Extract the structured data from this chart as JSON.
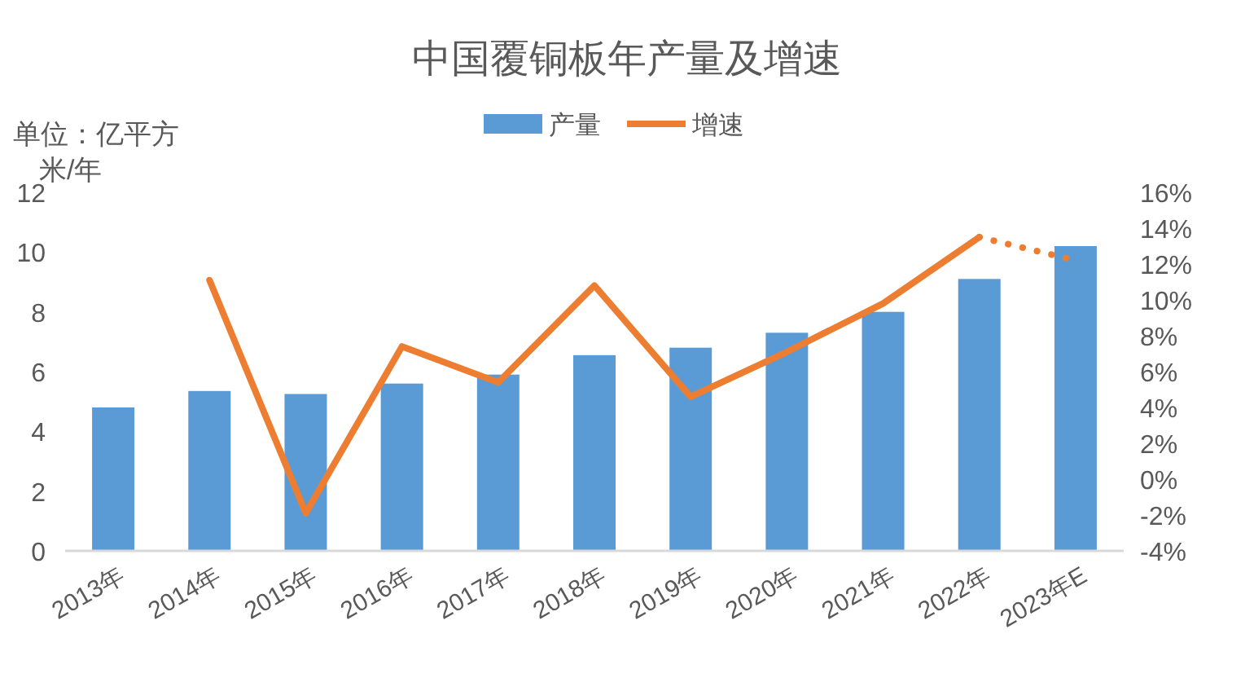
{
  "chart_data": {
    "type": "bar",
    "title": "中国覆铜板年产量及增速",
    "ylabel": "单位：亿平方米/年",
    "categories": [
      "2013年",
      "2014年",
      "2015年",
      "2016年",
      "2017年",
      "2018年",
      "2019年",
      "2020年",
      "2021年",
      "2022年",
      "2023年E"
    ],
    "series": [
      {
        "name": "产量",
        "color": "#5b9bd5",
        "values": [
          4.8,
          5.35,
          5.25,
          5.6,
          5.9,
          6.55,
          6.8,
          7.3,
          8.0,
          9.1,
          10.2
        ]
      },
      {
        "name": "增速",
        "type": "line",
        "axis": "y2",
        "color": "#ed7d31",
        "line_style": "solid",
        "values": [
          null,
          11.1,
          -1.9,
          7.4,
          5.4,
          10.8,
          4.6,
          7.1,
          9.8,
          13.5,
          null
        ]
      },
      {
        "type": "line",
        "axis": "y2",
        "color": "#ed7d31",
        "line_style": "dotted",
        "values": [
          null,
          null,
          null,
          null,
          null,
          null,
          null,
          null,
          null,
          13.5,
          12.2
        ]
      }
    ],
    "ylim": [
      0,
      12
    ],
    "yticks": [
      0,
      2,
      4,
      6,
      8,
      10,
      12
    ],
    "y2lim": [
      -4,
      16
    ],
    "y2ticks": [
      {
        "value": -4,
        "label": "-4%"
      },
      {
        "value": -2,
        "label": "-2%"
      },
      {
        "value": 0,
        "label": "0%"
      },
      {
        "value": 2,
        "label": "2%"
      },
      {
        "value": 4,
        "label": "4%"
      },
      {
        "value": 6,
        "label": "6%"
      },
      {
        "value": 8,
        "label": "8%"
      },
      {
        "value": 10,
        "label": "10%"
      },
      {
        "value": 12,
        "label": "12%"
      },
      {
        "value": 14,
        "label": "14%"
      },
      {
        "value": 16,
        "label": "16%"
      }
    ],
    "grid": false,
    "legend": "top"
  }
}
